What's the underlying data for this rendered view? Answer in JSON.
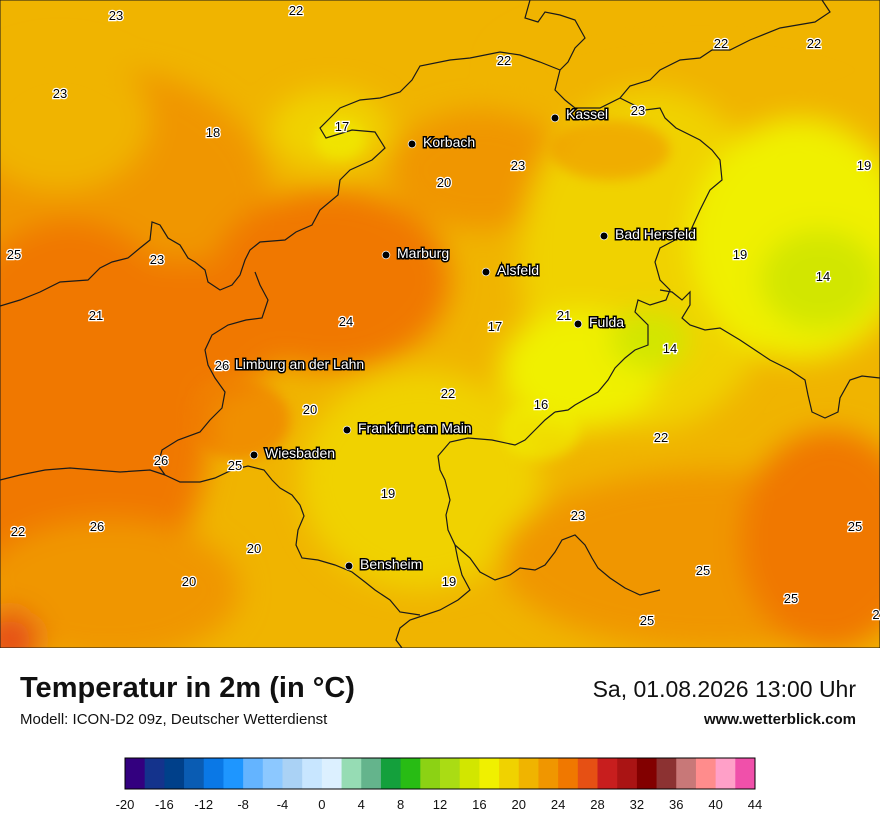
{
  "title": "Temperatur in 2m (in °C)",
  "model": "Modell: ICON-D2 09z, Deutscher Wetterdienst",
  "datetime": "Sa, 01.08.2026 13:00 Uhr",
  "website": "www.wetterblick.com",
  "cities": [
    {
      "name": "Kassel"
    },
    {
      "name": "Korbach"
    },
    {
      "name": "Bad Hersfeld"
    },
    {
      "name": "Marburg"
    },
    {
      "name": "Alsfeld"
    },
    {
      "name": "Fulda"
    },
    {
      "name": "Limburg an der Lahn"
    },
    {
      "name": "Frankfurt am Main"
    },
    {
      "name": "Wiesbaden"
    },
    {
      "name": "Bensheim"
    }
  ],
  "temperature_labels": [
    "23",
    "22",
    "23",
    "22",
    "22",
    "22",
    "18",
    "17",
    "23",
    "23",
    "19",
    "20",
    "25",
    "23",
    "19",
    "14",
    "21",
    "21",
    "24",
    "17",
    "14",
    "26",
    "22",
    "20",
    "16",
    "22",
    "26",
    "25",
    "19",
    "22",
    "26",
    "23",
    "25",
    "20",
    "20",
    "19",
    "25",
    "25",
    "25",
    "2"
  ],
  "legend": {
    "ticks": [
      "-20",
      "-16",
      "-12",
      "-8",
      "-4",
      "0",
      "4",
      "8",
      "12",
      "16",
      "20",
      "24",
      "28",
      "32",
      "36",
      "40",
      "44"
    ],
    "colors": [
      "#33007f",
      "#14338c",
      "#00408a",
      "#0a5cb3",
      "#0a78e6",
      "#1e96ff",
      "#64b4ff",
      "#8cc8ff",
      "#aad2f5",
      "#c8e6ff",
      "#dcf0ff",
      "#96dcb4",
      "#64b48c",
      "#14a03c",
      "#28bc14",
      "#8cd214",
      "#aadc14",
      "#d2e600",
      "#f0f000",
      "#f0d200",
      "#f0b400",
      "#f09600",
      "#f07800",
      "#e65014",
      "#c81e1e",
      "#aa1414",
      "#820000",
      "#8c3232",
      "#c87878",
      "#ff8c8c",
      "#ffa0c8",
      "#f050aa"
    ]
  }
}
